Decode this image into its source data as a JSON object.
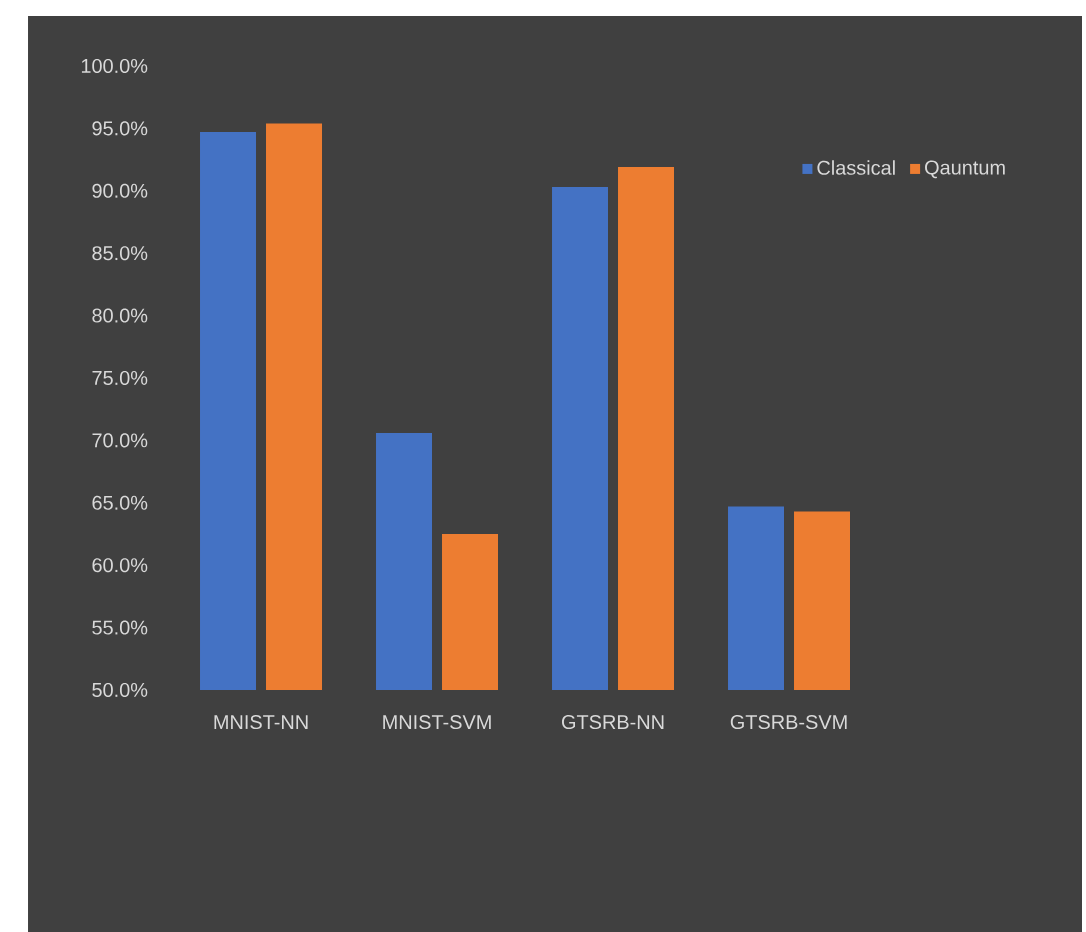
{
  "chart_data": {
    "type": "bar",
    "categories": [
      "MNIST-NN",
      "MNIST-SVM",
      "GTSRB-NN",
      "GTSRB-SVM"
    ],
    "series": [
      {
        "name": "Classical",
        "color": "#4472c4",
        "values": [
          94.7,
          70.6,
          90.3,
          64.7
        ]
      },
      {
        "name": "Qauntum",
        "color": "#ed7d31",
        "values": [
          95.4,
          62.5,
          91.9,
          64.3
        ]
      }
    ],
    "ylim": [
      50,
      100
    ],
    "yticks": [
      {
        "value": 50,
        "label": "50.0%"
      },
      {
        "value": 55,
        "label": "55.0%"
      },
      {
        "value": 60,
        "label": "60.0%"
      },
      {
        "value": 65,
        "label": "65.0%"
      },
      {
        "value": 70,
        "label": "70.0%"
      },
      {
        "value": 75,
        "label": "75.0%"
      },
      {
        "value": 80,
        "label": "80.0%"
      },
      {
        "value": 85,
        "label": "85.0%"
      },
      {
        "value": 90,
        "label": "90.0%"
      },
      {
        "value": 95,
        "label": "95.0%"
      },
      {
        "value": 100,
        "label": "100.0%"
      }
    ],
    "legend": "top right"
  }
}
